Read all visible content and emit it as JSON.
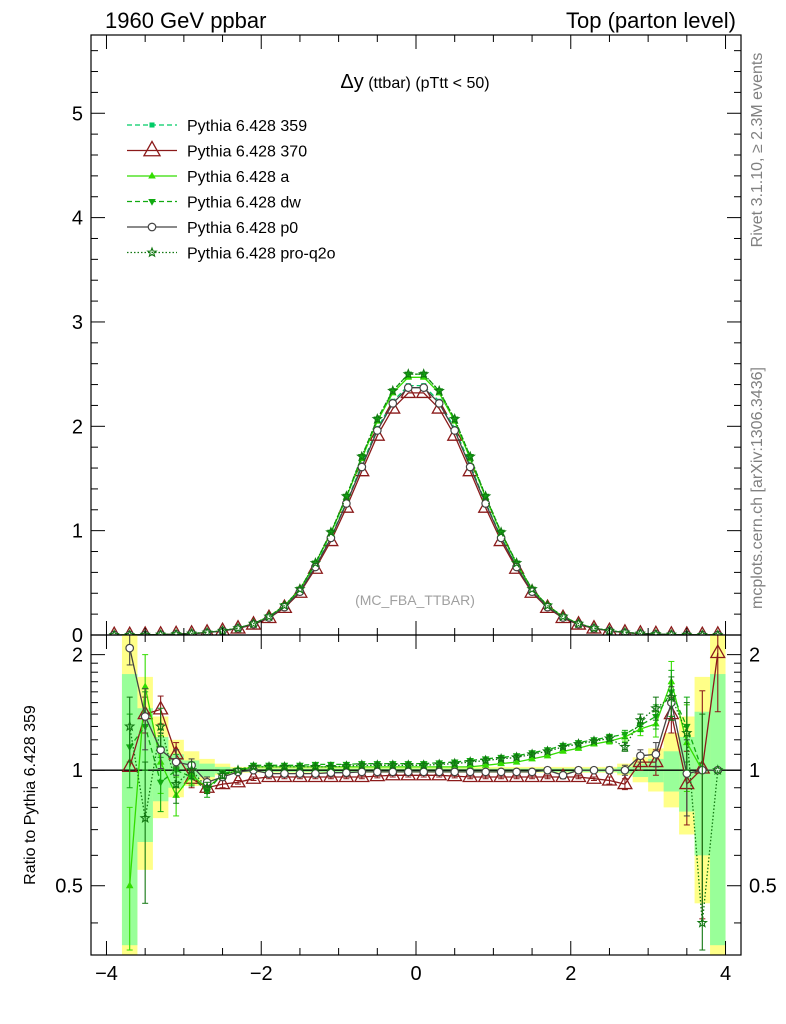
{
  "header": {
    "left": "1960 GeV ppbar",
    "right": "Top (parton level)"
  },
  "side_labels": {
    "upper": "Rivet 3.1.10, ≥ 2.3M events",
    "lower": "mcplots.cern.ch [arXiv:1306.3436]"
  },
  "chart_data": [
    {
      "type": "line",
      "title_main": "Δy",
      "title_detail": " (ttbar) (pTtt < 50)",
      "watermark": "(MC_FBA_TTBAR)",
      "xlabel": "",
      "ylabel": "",
      "xlim": [
        -4.2,
        4.2
      ],
      "ylim": [
        0,
        5.75
      ],
      "yticks": [
        0,
        1,
        2,
        3,
        4,
        5
      ],
      "ytick_labels": [
        "0",
        "1",
        "2",
        "3",
        "4",
        "5"
      ],
      "legend_position": "top-left",
      "x": [
        -3.9,
        -3.7,
        -3.5,
        -3.3,
        -3.1,
        -2.9,
        -2.7,
        -2.5,
        -2.3,
        -2.1,
        -1.9,
        -1.7,
        -1.5,
        -1.3,
        -1.1,
        -0.9,
        -0.7,
        -0.5,
        -0.3,
        -0.1,
        0.1,
        0.3,
        0.5,
        0.7,
        0.9,
        1.1,
        1.3,
        1.5,
        1.7,
        1.9,
        2.1,
        2.3,
        2.5,
        2.7,
        2.9,
        3.1,
        3.3,
        3.5,
        3.7,
        3.9
      ],
      "series": [
        {
          "name": "Pythia 6.428 359",
          "color": "#00cc66",
          "marker": "square",
          "dash": "5,3",
          "values": [
            0.0,
            0.0,
            0.002,
            0.004,
            0.008,
            0.014,
            0.024,
            0.04,
            0.065,
            0.105,
            0.17,
            0.27,
            0.42,
            0.66,
            0.94,
            1.27,
            1.63,
            1.98,
            2.24,
            2.39,
            2.39,
            2.24,
            1.98,
            1.63,
            1.27,
            0.94,
            0.66,
            0.42,
            0.27,
            0.17,
            0.105,
            0.065,
            0.04,
            0.024,
            0.014,
            0.008,
            0.004,
            0.002,
            0.0,
            0.0
          ]
        },
        {
          "name": "Pythia 6.428 370",
          "color": "#8b1a1a",
          "marker": "open-triangle-up",
          "dash": "",
          "values": [
            0.0,
            0.0,
            0.002,
            0.004,
            0.008,
            0.013,
            0.023,
            0.038,
            0.062,
            0.1,
            0.163,
            0.26,
            0.405,
            0.635,
            0.9,
            1.22,
            1.57,
            1.91,
            2.17,
            2.32,
            2.32,
            2.17,
            1.91,
            1.57,
            1.22,
            0.9,
            0.635,
            0.405,
            0.26,
            0.163,
            0.1,
            0.062,
            0.038,
            0.023,
            0.013,
            0.008,
            0.004,
            0.002,
            0.0,
            0.003
          ]
        },
        {
          "name": "Pythia 6.428 a",
          "color": "#33dd00",
          "marker": "triangle-up",
          "dash": "",
          "values": [
            0.0,
            0.0,
            0.002,
            0.004,
            0.008,
            0.014,
            0.024,
            0.041,
            0.066,
            0.108,
            0.176,
            0.28,
            0.436,
            0.685,
            0.976,
            1.32,
            1.69,
            2.05,
            2.32,
            2.47,
            2.47,
            2.32,
            2.05,
            1.69,
            1.32,
            0.976,
            0.685,
            0.436,
            0.28,
            0.176,
            0.108,
            0.066,
            0.041,
            0.024,
            0.014,
            0.008,
            0.004,
            0.002,
            0.0,
            0.0
          ]
        },
        {
          "name": "Pythia 6.428 dw",
          "color": "#11aa11",
          "marker": "triangle-down",
          "dash": "5,3",
          "values": [
            0.0,
            0.0,
            0.002,
            0.004,
            0.008,
            0.014,
            0.024,
            0.041,
            0.066,
            0.109,
            0.177,
            0.283,
            0.44,
            0.69,
            0.985,
            1.33,
            1.71,
            2.07,
            2.34,
            2.5,
            2.5,
            2.34,
            2.07,
            1.71,
            1.33,
            0.985,
            0.69,
            0.44,
            0.283,
            0.177,
            0.109,
            0.066,
            0.041,
            0.024,
            0.014,
            0.008,
            0.004,
            0.002,
            0.0,
            0.0
          ]
        },
        {
          "name": "Pythia 6.428 p0",
          "color": "#444444",
          "marker": "open-circle",
          "dash": "",
          "values": [
            0.0,
            0.0,
            0.002,
            0.004,
            0.008,
            0.014,
            0.023,
            0.039,
            0.064,
            0.104,
            0.168,
            0.267,
            0.415,
            0.652,
            0.93,
            1.26,
            1.61,
            1.96,
            2.22,
            2.37,
            2.37,
            2.22,
            1.96,
            1.61,
            1.26,
            0.93,
            0.652,
            0.415,
            0.267,
            0.168,
            0.104,
            0.064,
            0.039,
            0.023,
            0.014,
            0.008,
            0.004,
            0.002,
            0.0,
            0.0
          ]
        },
        {
          "name": "Pythia 6.428 pro-q2o",
          "color": "#117711",
          "marker": "open-star",
          "dash": "1.5,2",
          "values": [
            0.0,
            0.0,
            0.002,
            0.004,
            0.008,
            0.014,
            0.024,
            0.041,
            0.066,
            0.109,
            0.177,
            0.283,
            0.44,
            0.69,
            0.985,
            1.33,
            1.71,
            2.07,
            2.34,
            2.5,
            2.5,
            2.34,
            2.07,
            1.71,
            1.33,
            0.985,
            0.69,
            0.44,
            0.283,
            0.177,
            0.109,
            0.066,
            0.041,
            0.024,
            0.014,
            0.008,
            0.004,
            0.002,
            0.0,
            0.0
          ]
        }
      ]
    },
    {
      "type": "line",
      "ylabel": "Ratio to Pythia 6.428 359",
      "xlim": [
        -4.2,
        4.2
      ],
      "ylim": [
        0.33,
        2.25
      ],
      "xticks": [
        -4,
        -2,
        0,
        2,
        4
      ],
      "xtick_labels": [
        "−4",
        "−2",
        "0",
        "2",
        "4"
      ],
      "yticks": [
        0.5,
        1,
        2
      ],
      "ytick_labels": [
        "0.5",
        "1",
        "2"
      ],
      "reference": 1,
      "x": [
        -3.7,
        -3.5,
        -3.3,
        -3.1,
        -2.9,
        -2.7,
        -2.5,
        -2.3,
        -2.1,
        -1.9,
        -1.7,
        -1.5,
        -1.3,
        -1.1,
        -0.9,
        -0.7,
        -0.5,
        -0.3,
        -0.1,
        0.1,
        0.3,
        0.5,
        0.7,
        0.9,
        1.1,
        1.3,
        1.5,
        1.7,
        1.9,
        2.1,
        2.3,
        2.5,
        2.7,
        2.9,
        3.1,
        3.3,
        3.5,
        3.7,
        3.9
      ],
      "bands": {
        "edges": [
          -3.8,
          -3.6,
          -3.4,
          -3.2,
          -3.0,
          -2.8,
          -2.6,
          -2.4,
          2.4,
          2.6,
          2.8,
          3.0,
          3.2,
          3.4,
          3.6,
          3.8,
          4.0
        ],
        "inner": {
          "color": "#99ff99",
          "lo": [
            0.35,
            0.65,
            0.83,
            0.9,
            0.94,
            0.96,
            0.98,
            0.99,
            0.99,
            0.98,
            0.96,
            0.93,
            0.88,
            0.78,
            0.6,
            0.35
          ],
          "hi": [
            1.78,
            1.45,
            1.22,
            1.1,
            1.06,
            1.04,
            1.02,
            1.01,
            1.01,
            1.02,
            1.04,
            1.07,
            1.12,
            1.22,
            1.42,
            1.78
          ]
        },
        "outer": {
          "color": "#ffff88",
          "lo": [
            0.33,
            0.55,
            0.75,
            0.85,
            0.91,
            0.94,
            0.97,
            0.985,
            0.985,
            0.97,
            0.93,
            0.88,
            0.8,
            0.68,
            0.45,
            0.33
          ],
          "hi": [
            2.25,
            1.75,
            1.38,
            1.2,
            1.12,
            1.07,
            1.04,
            1.02,
            1.02,
            1.04,
            1.08,
            1.14,
            1.25,
            1.38,
            1.75,
            2.25
          ]
        }
      },
      "series": [
        {
          "name": "Pythia 6.428 370",
          "color": "#8b1a1a",
          "marker": "open-triangle-up",
          "dash": "",
          "values": [
            1.02,
            1.4,
            1.44,
            1.1,
            0.95,
            0.9,
            0.92,
            0.93,
            0.95,
            0.96,
            0.96,
            0.96,
            0.96,
            0.96,
            0.96,
            0.96,
            0.965,
            0.97,
            0.97,
            0.97,
            0.97,
            0.965,
            0.96,
            0.96,
            0.96,
            0.96,
            0.96,
            0.96,
            0.96,
            0.96,
            0.95,
            0.94,
            0.92,
            1.05,
            1.05,
            1.4,
            0.92,
            1.01,
            2.02
          ],
          "err": [
            0.0,
            0.15,
            0.12,
            0.08,
            0.05,
            0.03,
            0.02,
            0.01,
            0.01,
            0.01,
            0.01,
            0.01,
            0.01,
            0.01,
            0.01,
            0.01,
            0.01,
            0.01,
            0.01,
            0.01,
            0.01,
            0.01,
            0.01,
            0.01,
            0.01,
            0.01,
            0.01,
            0.01,
            0.01,
            0.01,
            0.01,
            0.02,
            0.03,
            0.05,
            0.08,
            0.15,
            0.2,
            0.6,
            0.6
          ]
        },
        {
          "name": "Pythia 6.428 a",
          "color": "#33dd00",
          "marker": "triangle-up",
          "dash": "",
          "values": [
            0.5,
            1.65,
            1.05,
            0.86,
            0.97,
            0.9,
            0.97,
            1.0,
            1.02,
            1.02,
            1.02,
            1.02,
            1.02,
            1.02,
            1.02,
            1.02,
            1.02,
            1.02,
            1.02,
            1.02,
            1.02,
            1.02,
            1.02,
            1.03,
            1.04,
            1.05,
            1.07,
            1.09,
            1.12,
            1.14,
            1.17,
            1.19,
            1.22,
            1.28,
            1.32,
            1.7,
            1.18,
            1.0,
            1.0
          ],
          "err": [
            0.3,
            0.35,
            0.18,
            0.1,
            0.05,
            0.03,
            0.02,
            0.01,
            0.01,
            0.01,
            0.01,
            0.01,
            0.01,
            0.01,
            0.01,
            0.01,
            0.01,
            0.01,
            0.01,
            0.01,
            0.01,
            0.01,
            0.01,
            0.01,
            0.01,
            0.01,
            0.01,
            0.01,
            0.01,
            0.01,
            0.01,
            0.02,
            0.03,
            0.05,
            0.1,
            0.22,
            0.3,
            0.0,
            0.0
          ]
        },
        {
          "name": "Pythia 6.428 dw",
          "color": "#11aa11",
          "marker": "triangle-down",
          "dash": "5,3",
          "values": [
            1.15,
            1.3,
            0.93,
            1.0,
            0.96,
            0.88,
            0.98,
            1.0,
            1.03,
            1.03,
            1.03,
            1.03,
            1.035,
            1.035,
            1.035,
            1.04,
            1.04,
            1.04,
            1.04,
            1.04,
            1.045,
            1.05,
            1.06,
            1.07,
            1.08,
            1.09,
            1.11,
            1.13,
            1.16,
            1.18,
            1.2,
            1.22,
            1.24,
            1.31,
            1.38,
            1.6,
            1.3,
            1.0,
            1.0
          ],
          "err": [
            0.25,
            0.3,
            0.15,
            0.1,
            0.05,
            0.03,
            0.02,
            0.01,
            0.01,
            0.01,
            0.01,
            0.01,
            0.01,
            0.01,
            0.01,
            0.01,
            0.01,
            0.01,
            0.01,
            0.01,
            0.01,
            0.01,
            0.01,
            0.01,
            0.01,
            0.01,
            0.01,
            0.01,
            0.01,
            0.01,
            0.01,
            0.02,
            0.03,
            0.05,
            0.1,
            0.22,
            0.25,
            0.0,
            0.0
          ]
        },
        {
          "name": "Pythia 6.428 p0",
          "color": "#444444",
          "marker": "open-circle",
          "dash": "",
          "values": [
            2.08,
            1.38,
            1.13,
            1.05,
            1.03,
            0.93,
            0.96,
            0.99,
            1.0,
            0.98,
            0.98,
            0.98,
            0.98,
            0.985,
            0.985,
            0.99,
            0.99,
            0.99,
            0.99,
            0.99,
            0.99,
            0.99,
            0.99,
            0.99,
            0.99,
            0.99,
            0.99,
            1.0,
            0.97,
            1.0,
            1.0,
            1.0,
            1.0,
            1.09,
            1.1,
            1.5,
            0.98,
            1.0,
            1.0
          ],
          "err": [
            0.2,
            0.25,
            0.12,
            0.08,
            0.04,
            0.03,
            0.02,
            0.01,
            0.01,
            0.01,
            0.01,
            0.01,
            0.01,
            0.01,
            0.01,
            0.01,
            0.01,
            0.01,
            0.01,
            0.01,
            0.01,
            0.01,
            0.01,
            0.01,
            0.01,
            0.01,
            0.01,
            0.01,
            0.01,
            0.01,
            0.01,
            0.02,
            0.03,
            0.04,
            0.08,
            0.15,
            0.22,
            0.0,
            0.0
          ]
        },
        {
          "name": "Pythia 6.428 pro-q2o",
          "color": "#117711",
          "marker": "open-star",
          "dash": "1.5,2",
          "values": [
            1.3,
            0.75,
            1.3,
            0.92,
            1.0,
            0.9,
            0.97,
            1.0,
            1.02,
            1.02,
            1.02,
            1.02,
            1.02,
            1.02,
            1.025,
            1.03,
            1.03,
            1.03,
            1.03,
            1.03,
            1.035,
            1.04,
            1.05,
            1.06,
            1.07,
            1.08,
            1.1,
            1.12,
            1.15,
            1.17,
            1.19,
            1.21,
            1.15,
            1.35,
            1.45,
            1.55,
            1.25,
            0.4,
            1.0
          ],
          "err": [
            0.25,
            0.3,
            0.15,
            0.1,
            0.05,
            0.03,
            0.02,
            0.01,
            0.01,
            0.01,
            0.01,
            0.01,
            0.01,
            0.01,
            0.01,
            0.01,
            0.01,
            0.01,
            0.01,
            0.01,
            0.01,
            0.01,
            0.01,
            0.01,
            0.01,
            0.01,
            0.01,
            0.01,
            0.01,
            0.01,
            0.01,
            0.02,
            0.03,
            0.05,
            0.1,
            0.2,
            0.25,
            1.0,
            0.0
          ]
        }
      ]
    }
  ]
}
